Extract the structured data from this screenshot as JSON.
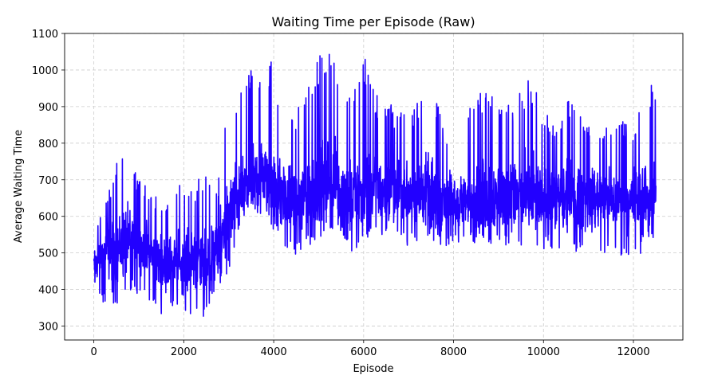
{
  "chart_data": {
    "type": "line",
    "title": "Waiting Time per Episode (Raw)",
    "xlabel": "Episode",
    "ylabel": "Average Waiting Time",
    "xlim": [
      -650,
      13100
    ],
    "ylim": [
      262,
      1100
    ],
    "xticks": [
      0,
      2000,
      4000,
      6000,
      8000,
      10000,
      12000
    ],
    "xtick_labels": [
      "0",
      "2000",
      "4000",
      "6000",
      "8000",
      "10000",
      "12000"
    ],
    "yticks": [
      300,
      400,
      500,
      600,
      700,
      800,
      900,
      1000,
      1100
    ],
    "ytick_labels": [
      "300",
      "400",
      "500",
      "600",
      "700",
      "800",
      "900",
      "1000",
      "1100"
    ],
    "grid": true,
    "line_color": "#2200ff",
    "series": [
      {
        "name": "",
        "x": [
          0,
          250,
          500,
          750,
          1000,
          1250,
          1500,
          1750,
          2000,
          2250,
          2500,
          2750,
          3000,
          3250,
          3500,
          3750,
          4000,
          4250,
          4500,
          4750,
          5000,
          5250,
          5500,
          5750,
          6000,
          6250,
          6500,
          6750,
          7000,
          7250,
          7500,
          7750,
          8000,
          8250,
          8500,
          8750,
          9000,
          9250,
          9500,
          9750,
          10000,
          10250,
          10500,
          10750,
          11000,
          11250,
          11500,
          11750,
          12000,
          12250,
          12500
        ],
        "y": [
          470,
          500,
          510,
          530,
          520,
          500,
          470,
          480,
          470,
          490,
          470,
          510,
          610,
          660,
          690,
          710,
          680,
          650,
          640,
          660,
          680,
          690,
          670,
          650,
          665,
          680,
          670,
          660,
          660,
          670,
          650,
          645,
          640,
          640,
          650,
          655,
          650,
          650,
          655,
          650,
          640,
          640,
          640,
          650,
          645,
          650,
          640,
          640,
          645,
          650,
          660
        ],
        "min": [
          420,
          350,
          360,
          380,
          380,
          370,
          330,
          350,
          340,
          330,
          320,
          400,
          450,
          560,
          580,
          600,
          560,
          500,
          490,
          510,
          540,
          570,
          540,
          500,
          520,
          540,
          540,
          530,
          520,
          530,
          530,
          520,
          520,
          520,
          520,
          520,
          520,
          510,
          510,
          510,
          510,
          510,
          490,
          500,
          490,
          500,
          500,
          490,
          490,
          500,
          540
        ],
        "max": [
          560,
          640,
          760,
          800,
          700,
          680,
          640,
          660,
          700,
          690,
          740,
          680,
          920,
          960,
          1020,
          1000,
          1030,
          880,
          880,
          980,
          1040,
          1060,
          1000,
          920,
          1060,
          930,
          940,
          880,
          900,
          920,
          1000,
          860,
          820,
          880,
          930,
          970,
          940,
          900,
          960,
          980,
          880,
          870,
          930,
          900,
          860,
          840,
          860,
          860,
          860,
          960,
          970
        ]
      }
    ]
  }
}
